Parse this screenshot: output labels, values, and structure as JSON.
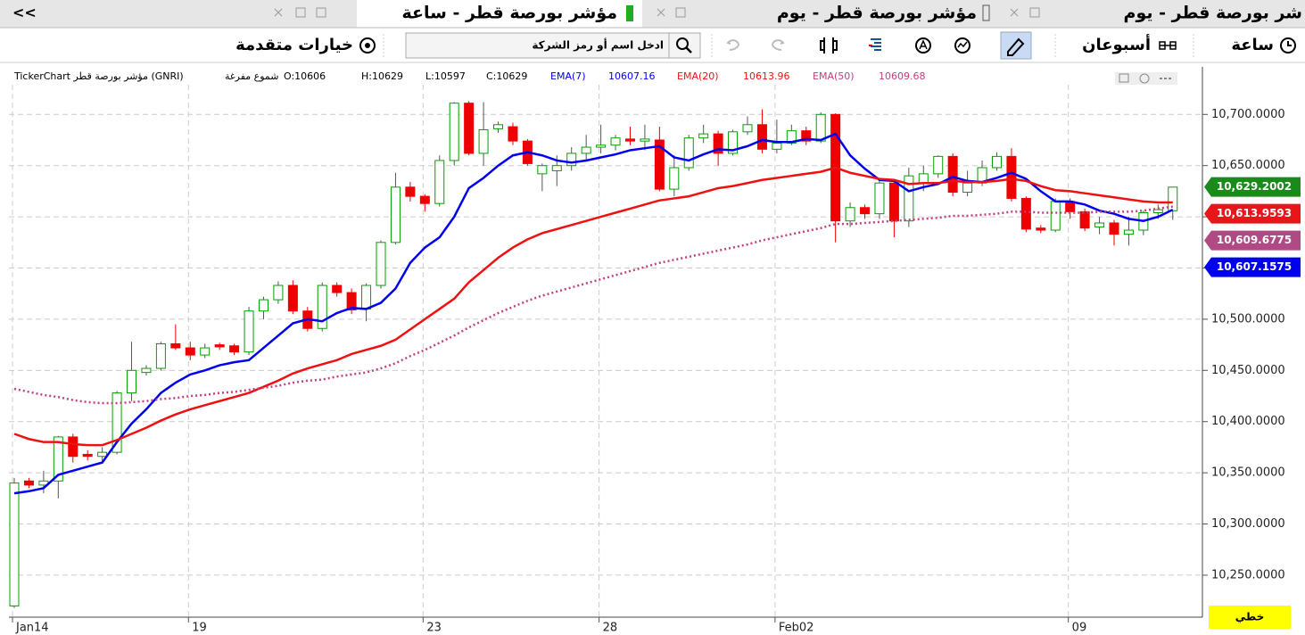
{
  "tabs": {
    "nav": "<<",
    "items": [
      "مؤشر بورصة قطر - ساعة",
      "مؤشر بورصة قطر - يوم",
      "شر بورصة قطر - يوم"
    ]
  },
  "toolbar": {
    "interval": "ساعة",
    "range": "أسبوعان",
    "search_placeholder": "ادخل اسم أو رمز الشركة",
    "advanced": "خيارات متقدمة"
  },
  "style_button": "خطي",
  "chart_data": {
    "type": "candlestick",
    "title": "TickerChart مؤشر بورصة قطر (GNRI)",
    "chart_style": "شموع مفرغة",
    "ohlc_labels": [
      "O:10606",
      "H:10629",
      "L:10597",
      "C:10629"
    ],
    "up_color": "#00a000",
    "down_color": "#ee0000",
    "grid": true,
    "ylim": [
      10209,
      10729
    ],
    "yticks": [
      {
        "value": 10250,
        "label": "10,250.0000"
      },
      {
        "value": 10300,
        "label": "10,300.0000"
      },
      {
        "value": 10350,
        "label": "10,350.0000"
      },
      {
        "value": 10400,
        "label": "10,400.0000"
      },
      {
        "value": 10450,
        "label": "10,450.0000"
      },
      {
        "value": 10500,
        "label": "10,500.0000"
      },
      {
        "value": 10550,
        "label": "10,550.0000"
      },
      {
        "value": 10600,
        "label": "10,600.0000"
      },
      {
        "value": 10650,
        "label": "10,650.0000"
      },
      {
        "value": 10700,
        "label": "10,700.0000"
      }
    ],
    "categories": [
      "Jan14",
      null,
      null,
      null,
      null,
      null,
      null,
      null,
      null,
      null,
      null,
      null,
      "19",
      null,
      null,
      null,
      null,
      null,
      null,
      null,
      null,
      null,
      null,
      null,
      null,
      null,
      null,
      null,
      "23",
      null,
      null,
      null,
      null,
      null,
      null,
      null,
      null,
      null,
      null,
      null,
      "28",
      null,
      null,
      null,
      null,
      null,
      null,
      null,
      null,
      null,
      null,
      null,
      "Feb02",
      null,
      null,
      null,
      null,
      null,
      null,
      null,
      null,
      null,
      null,
      null,
      null,
      null,
      null,
      null,
      null,
      null,
      null,
      null,
      "09",
      null,
      null,
      null,
      null,
      null,
      null,
      null
    ],
    "open": [
      10220,
      10342,
      10338,
      10342,
      10385,
      10368,
      10366,
      10370,
      10428,
      10448,
      10452,
      10476,
      10472,
      10465,
      10475,
      10474,
      10468,
      10508,
      10519,
      10533,
      10508,
      10491,
      10533,
      10526,
      10510,
      10533,
      10575,
      10629,
      10620,
      10613,
      10655,
      10711,
      10662,
      10686,
      10688,
      10674,
      10642,
      10645,
      10650,
      10662,
      10668,
      10670,
      10676,
      10674,
      10675,
      10627,
      10648,
      10677,
      10681,
      10662,
      10683,
      10690,
      10666,
      10672,
      10684,
      10674,
      10700,
      10596,
      10609,
      10603,
      10633,
      10596,
      10633,
      10642,
      10659,
      10624,
      10633,
      10648,
      10659,
      10618,
      10589,
      10587,
      10615,
      10605,
      10590,
      10594,
      10583,
      10587,
      10604,
      10606
    ],
    "high": [
      10345,
      10345,
      10352,
      10386,
      10388,
      10372,
      10375,
      10430,
      10478,
      10455,
      10478,
      10495,
      10478,
      10476,
      10477,
      10476,
      10512,
      10522,
      10537,
      10538,
      10512,
      10536,
      10536,
      10530,
      10535,
      10577,
      10643,
      10634,
      10622,
      10660,
      10712,
      10713,
      10712,
      10693,
      10692,
      10676,
      10652,
      10660,
      10668,
      10680,
      10690,
      10680,
      10688,
      10690,
      10688,
      10660,
      10680,
      10690,
      10684,
      10685,
      10698,
      10705,
      10695,
      10690,
      10688,
      10702,
      10701,
      10614,
      10612,
      10636,
      10636,
      10648,
      10650,
      10660,
      10662,
      10645,
      10655,
      10663,
      10667,
      10620,
      10592,
      10618,
      10618,
      10608,
      10600,
      10597,
      10600,
      10606,
      10612,
      10629
    ],
    "low": [
      10218,
      10335,
      10330,
      10325,
      10360,
      10362,
      10360,
      10368,
      10420,
      10445,
      10450,
      10470,
      10460,
      10462,
      10470,
      10465,
      10465,
      10500,
      10515,
      10505,
      10488,
      10488,
      10522,
      10505,
      10498,
      10530,
      10573,
      10615,
      10605,
      10610,
      10650,
      10660,
      10650,
      10682,
      10670,
      10650,
      10625,
      10630,
      10645,
      10655,
      10662,
      10665,
      10670,
      10665,
      10625,
      10620,
      10645,
      10672,
      10650,
      10660,
      10680,
      10662,
      10662,
      10670,
      10670,
      10672,
      10575,
      10590,
      10598,
      10598,
      10580,
      10590,
      10625,
      10638,
      10620,
      10620,
      10630,
      10645,
      10615,
      10585,
      10584,
      10585,
      10598,
      10586,
      10583,
      10572,
      10572,
      10582,
      10598,
      10597
    ],
    "close": [
      10340,
      10338,
      10342,
      10385,
      10366,
      10366,
      10370,
      10428,
      10450,
      10452,
      10476,
      10472,
      10465,
      10472,
      10473,
      10468,
      10508,
      10519,
      10533,
      10508,
      10491,
      10533,
      10526,
      10509,
      10533,
      10575,
      10629,
      10620,
      10613,
      10655,
      10711,
      10662,
      10685,
      10690,
      10674,
      10652,
      10650,
      10650,
      10662,
      10668,
      10670,
      10677,
      10674,
      10676,
      10627,
      10648,
      10677,
      10681,
      10662,
      10683,
      10690,
      10666,
      10672,
      10684,
      10674,
      10700,
      10596,
      10609,
      10603,
      10633,
      10596,
      10640,
      10642,
      10659,
      10624,
      10633,
      10648,
      10659,
      10618,
      10588,
      10587,
      10615,
      10605,
      10589,
      10594,
      10583,
      10587,
      10604,
      10607,
      10629
    ],
    "series": [
      {
        "name": "EMA(7)",
        "color": "#0000ee",
        "dash": false,
        "last_label": "10607.16",
        "values": [
          10330,
          10332,
          10335,
          10348,
          10352,
          10356,
          10360,
          10380,
          10398,
          10412,
          10428,
          10438,
          10446,
          10450,
          10455,
          10458,
          10460,
          10472,
          10484,
          10496,
          10500,
          10498,
          10506,
          10511,
          10510,
          10516,
          10530,
          10555,
          10570,
          10580,
          10600,
          10628,
          10638,
          10650,
          10660,
          10663,
          10660,
          10655,
          10653,
          10655,
          10658,
          10661,
          10665,
          10667,
          10669,
          10658,
          10655,
          10661,
          10666,
          10665,
          10669,
          10675,
          10673,
          10673,
          10676,
          10675,
          10681,
          10660,
          10647,
          10636,
          10635,
          10625,
          10629,
          10632,
          10639,
          10635,
          10634,
          10638,
          10643,
          10637,
          10625,
          10615,
          10615,
          10612,
          10606,
          10603,
          10598,
          10596,
          10600,
          10607
        ]
      },
      {
        "name": "EMA(20)",
        "color": "#ee1111",
        "dash": false,
        "last_label": "10613.96",
        "values": [
          10388,
          10383,
          10380,
          10380,
          10378,
          10377,
          10377,
          10382,
          10388,
          10394,
          10401,
          10407,
          10412,
          10416,
          10420,
          10424,
          10428,
          10434,
          10440,
          10447,
          10452,
          10456,
          10460,
          10466,
          10470,
          10474,
          10480,
          10490,
          10500,
          10510,
          10520,
          10536,
          10548,
          10560,
          10570,
          10578,
          10584,
          10588,
          10592,
          10596,
          10600,
          10604,
          10608,
          10612,
          10616,
          10618,
          10620,
          10624,
          10628,
          10630,
          10633,
          10636,
          10638,
          10640,
          10642,
          10644,
          10648,
          10643,
          10640,
          10637,
          10636,
          10632,
          10633,
          10633,
          10635,
          10634,
          10634,
          10635,
          10637,
          10635,
          10630,
          10626,
          10625,
          10623,
          10621,
          10619,
          10617,
          10615,
          10614,
          10614
        ]
      },
      {
        "name": "EMA(50)",
        "color": "#c04080",
        "dash": true,
        "last_label": "10609.68",
        "values": [
          10432,
          10429,
          10426,
          10424,
          10421,
          10419,
          10418,
          10418,
          10419,
          10420,
          10422,
          10423,
          10425,
          10426,
          10428,
          10429,
          10431,
          10433,
          10435,
          10438,
          10440,
          10441,
          10444,
          10446,
          10448,
          10452,
          10457,
          10464,
          10470,
          10477,
          10484,
          10492,
          10499,
          10506,
          10512,
          10518,
          10523,
          10527,
          10531,
          10535,
          10539,
          10543,
          10547,
          10551,
          10555,
          10558,
          10561,
          10564,
          10567,
          10570,
          10573,
          10577,
          10580,
          10583,
          10586,
          10589,
          10593,
          10593,
          10594,
          10595,
          10596,
          10597,
          10598,
          10599,
          10601,
          10601,
          10602,
          10603,
          10605,
          10605,
          10604,
          10604,
          10604,
          10604,
          10605,
          10605,
          10605,
          10606,
          10608,
          10610
        ]
      }
    ],
    "price_tags": [
      {
        "value": 10629.2002,
        "label": "10,629.2002",
        "color": "#1a8a1a"
      },
      {
        "value": 10613.9593,
        "label": "10,613.9593",
        "color": "#e8161b"
      },
      {
        "value": 10609.6775,
        "label": "10,609.6775",
        "color": "#b04a84"
      },
      {
        "value": 10607.1575,
        "label": "10,607.1575",
        "color": "#0000ee"
      }
    ]
  }
}
